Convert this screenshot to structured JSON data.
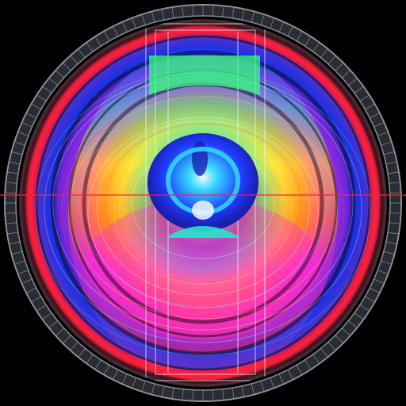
{
  "artwork": {
    "kind": "abstract-circular-digital-artwork",
    "background_color": "#000000",
    "palette": {
      "outer_ring": "#bfc3cc",
      "outer_ring_dark": "#2a2c33",
      "violet": "#8a2be2",
      "blue": "#1f3cff",
      "deep_blue": "#1a1fb0",
      "magenta": "#ff2bd6",
      "pink": "#ff3d7f",
      "red": "#ff1e3c",
      "orange": "#ff8a1a",
      "yellow": "#ffe93b",
      "green": "#39ff7a",
      "teal": "#27e6c8",
      "cyan": "#35d9ff",
      "white": "#f4f8ff"
    },
    "motifs": [
      "outer-grid-ring",
      "rainbow-concentric-rings",
      "central-blue-core",
      "vertical-frame-bars",
      "horizontal-axis-line",
      "wireframe-arcs"
    ]
  }
}
